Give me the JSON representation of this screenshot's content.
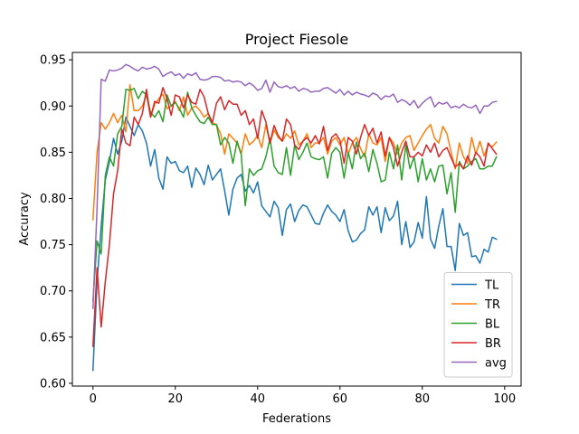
{
  "chart_data": {
    "type": "line",
    "title": "Project Fiesole",
    "xlabel": "Federations",
    "ylabel": "Accuracy",
    "xlim": [
      -5,
      104
    ],
    "ylim": [
      0.597,
      0.958
    ],
    "xticks": [
      0,
      20,
      40,
      60,
      80,
      100
    ],
    "yticks": [
      0.6,
      0.65,
      0.7,
      0.75,
      0.8,
      0.85,
      0.9,
      0.95
    ],
    "ytick_labels": [
      "0.60",
      "0.65",
      "0.70",
      "0.75",
      "0.80",
      "0.85",
      "0.90",
      "0.95"
    ],
    "legend_position": "lower-right",
    "grid": false,
    "series": [
      {
        "name": "TL",
        "color": "#1f77b4",
        "values": [
          0.614,
          0.71,
          0.77,
          0.82,
          0.84,
          0.865,
          0.848,
          0.862,
          0.888,
          0.878,
          0.868,
          0.88,
          0.873,
          0.86,
          0.835,
          0.853,
          0.822,
          0.81,
          0.845,
          0.838,
          0.84,
          0.83,
          0.828,
          0.835,
          0.812,
          0.833,
          0.826,
          0.815,
          0.836,
          0.82,
          0.826,
          0.832,
          0.808,
          0.782,
          0.81,
          0.822,
          0.826,
          0.808,
          0.814,
          0.806,
          0.818,
          0.792,
          0.786,
          0.78,
          0.797,
          0.79,
          0.76,
          0.788,
          0.794,
          0.775,
          0.787,
          0.793,
          0.791,
          0.782,
          0.773,
          0.772,
          0.784,
          0.793,
          0.786,
          0.782,
          0.775,
          0.788,
          0.765,
          0.753,
          0.755,
          0.762,
          0.766,
          0.791,
          0.782,
          0.791,
          0.763,
          0.79,
          0.776,
          0.781,
          0.797,
          0.75,
          0.775,
          0.747,
          0.753,
          0.774,
          0.757,
          0.802,
          0.756,
          0.746,
          0.77,
          0.789,
          0.748,
          0.748,
          0.722,
          0.773,
          0.76,
          0.763,
          0.737,
          0.738,
          0.73,
          0.745,
          0.742,
          0.758,
          0.756
        ]
      },
      {
        "name": "TR",
        "color": "#ff7f0e",
        "values": [
          0.777,
          0.85,
          0.882,
          0.875,
          0.882,
          0.892,
          0.882,
          0.89,
          0.872,
          0.923,
          0.895,
          0.895,
          0.9,
          0.912,
          0.888,
          0.902,
          0.908,
          0.913,
          0.897,
          0.9,
          0.905,
          0.895,
          0.91,
          0.89,
          0.898,
          0.9,
          0.895,
          0.888,
          0.892,
          0.882,
          0.88,
          0.87,
          0.848,
          0.87,
          0.865,
          0.86,
          0.848,
          0.87,
          0.858,
          0.862,
          0.868,
          0.855,
          0.88,
          0.86,
          0.874,
          0.866,
          0.862,
          0.87,
          0.865,
          0.873,
          0.858,
          0.862,
          0.87,
          0.855,
          0.86,
          0.86,
          0.866,
          0.848,
          0.862,
          0.866,
          0.858,
          0.866,
          0.848,
          0.86,
          0.866,
          0.854,
          0.845,
          0.87,
          0.86,
          0.858,
          0.866,
          0.84,
          0.866,
          0.86,
          0.848,
          0.86,
          0.866,
          0.868,
          0.852,
          0.86,
          0.868,
          0.875,
          0.88,
          0.865,
          0.86,
          0.878,
          0.87,
          0.85,
          0.832,
          0.86,
          0.845,
          0.838,
          0.866,
          0.848,
          0.862,
          0.846,
          0.858,
          0.856,
          0.861
        ]
      },
      {
        "name": "BL",
        "color": "#2ca02c",
        "values": [
          0.689,
          0.754,
          0.74,
          0.825,
          0.845,
          0.835,
          0.87,
          0.878,
          0.918,
          0.917,
          0.919,
          0.908,
          0.916,
          0.912,
          0.893,
          0.888,
          0.895,
          0.883,
          0.912,
          0.9,
          0.904,
          0.897,
          0.888,
          0.915,
          0.898,
          0.89,
          0.883,
          0.881,
          0.888,
          0.88,
          0.88,
          0.858,
          0.866,
          0.86,
          0.838,
          0.862,
          0.848,
          0.792,
          0.832,
          0.825,
          0.83,
          0.832,
          0.845,
          0.865,
          0.835,
          0.828,
          0.826,
          0.855,
          0.825,
          0.858,
          0.842,
          0.85,
          0.86,
          0.845,
          0.843,
          0.842,
          0.845,
          0.822,
          0.849,
          0.855,
          0.85,
          0.822,
          0.85,
          0.832,
          0.861,
          0.843,
          0.849,
          0.829,
          0.853,
          0.838,
          0.818,
          0.82,
          0.85,
          0.832,
          0.858,
          0.82,
          0.858,
          0.832,
          0.845,
          0.818,
          0.843,
          0.82,
          0.832,
          0.818,
          0.835,
          0.836,
          0.805,
          0.828,
          0.785,
          0.84,
          0.832,
          0.835,
          0.84,
          0.843,
          0.832,
          0.832,
          0.835,
          0.835,
          0.845
        ]
      },
      {
        "name": "BR",
        "color": "#d62728",
        "values": [
          0.64,
          0.725,
          0.661,
          0.71,
          0.75,
          0.805,
          0.83,
          0.875,
          0.86,
          0.857,
          0.888,
          0.88,
          0.892,
          0.918,
          0.888,
          0.905,
          0.903,
          0.92,
          0.908,
          0.89,
          0.912,
          0.91,
          0.898,
          0.912,
          0.904,
          0.902,
          0.918,
          0.91,
          0.892,
          0.882,
          0.903,
          0.91,
          0.896,
          0.906,
          0.902,
          0.902,
          0.89,
          0.895,
          0.88,
          0.886,
          0.865,
          0.895,
          0.883,
          0.86,
          0.879,
          0.868,
          0.862,
          0.886,
          0.88,
          0.858,
          0.853,
          0.862,
          0.866,
          0.86,
          0.868,
          0.859,
          0.878,
          0.852,
          0.866,
          0.87,
          0.863,
          0.838,
          0.866,
          0.862,
          0.848,
          0.866,
          0.88,
          0.868,
          0.876,
          0.86,
          0.872,
          0.846,
          0.866,
          0.855,
          0.835,
          0.85,
          0.862,
          0.845,
          0.845,
          0.85,
          0.846,
          0.858,
          0.85,
          0.86,
          0.845,
          0.852,
          0.855,
          0.844,
          0.834,
          0.838,
          0.832,
          0.846,
          0.836,
          0.85,
          0.845,
          0.835,
          0.86,
          0.854,
          0.848
        ]
      },
      {
        "name": "avg",
        "color": "#9467bd",
        "values": [
          0.681,
          0.79,
          0.929,
          0.927,
          0.939,
          0.938,
          0.939,
          0.941,
          0.945,
          0.943,
          0.94,
          0.938,
          0.942,
          0.94,
          0.941,
          0.943,
          0.94,
          0.932,
          0.935,
          0.937,
          0.933,
          0.935,
          0.93,
          0.935,
          0.933,
          0.936,
          0.929,
          0.928,
          0.929,
          0.932,
          0.932,
          0.931,
          0.927,
          0.928,
          0.926,
          0.927,
          0.926,
          0.922,
          0.925,
          0.922,
          0.917,
          0.919,
          0.928,
          0.915,
          0.926,
          0.921,
          0.92,
          0.922,
          0.919,
          0.921,
          0.916,
          0.919,
          0.918,
          0.915,
          0.916,
          0.916,
          0.919,
          0.92,
          0.917,
          0.914,
          0.918,
          0.912,
          0.916,
          0.912,
          0.915,
          0.913,
          0.912,
          0.91,
          0.914,
          0.912,
          0.907,
          0.911,
          0.91,
          0.913,
          0.904,
          0.907,
          0.905,
          0.901,
          0.906,
          0.898,
          0.903,
          0.907,
          0.91,
          0.899,
          0.904,
          0.902,
          0.904,
          0.898,
          0.9,
          0.898,
          0.902,
          0.899,
          0.898,
          0.901,
          0.892,
          0.9,
          0.9,
          0.904,
          0.905
        ]
      }
    ]
  }
}
